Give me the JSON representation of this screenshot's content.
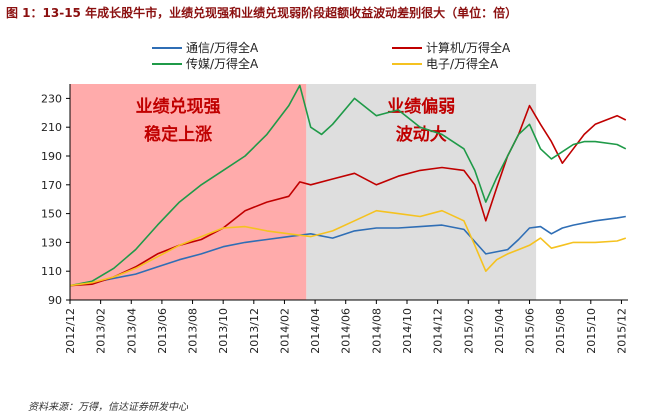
{
  "title": "图 1：13-15 年成长股牛市，业绩兑现强和业绩兑现弱阶段超额收益波动差别很大（单位：倍）",
  "source": "资料来源：万得，信达证券研发中心",
  "chart_data": {
    "type": "line",
    "title": "图 1：13-15 年成长股牛市，业绩兑现强和业绩兑现弱阶段超额收益波动差别很大（单位：倍）",
    "x_ticks": [
      "2012/12",
      "2013/02",
      "2013/04",
      "2013/06",
      "2013/08",
      "2013/10",
      "2013/12",
      "2014/02",
      "2014/04",
      "2014/06",
      "2014/08",
      "2014/10",
      "2014/12",
      "2015/02",
      "2015/04",
      "2015/06",
      "2015/08",
      "2015/10",
      "2015/12"
    ],
    "y_ticks": [
      90,
      110,
      130,
      150,
      170,
      190,
      210,
      230
    ],
    "ylim": [
      90,
      240
    ],
    "xlim": [
      0,
      25.5
    ],
    "grid": false,
    "legend_position": "top",
    "shaded_regions": [
      {
        "from": 0,
        "to": 10.8,
        "color": "#ffabab",
        "label_lines": [
          "业绩兑现强",
          "稳定上涨"
        ]
      },
      {
        "from": 10.8,
        "to": 21.3,
        "color": "#dedede",
        "label_lines": [
          "业绩偏弱",
          "波动大"
        ]
      }
    ],
    "series": [
      {
        "name": "通信/万得全A",
        "color": "#2f6eb5",
        "x": [
          0,
          1,
          2,
          3,
          4,
          5,
          6,
          7,
          8,
          9,
          10,
          11,
          12,
          13,
          14,
          15,
          16,
          17,
          18,
          19,
          20,
          20.5,
          21,
          21.5,
          22,
          22.5,
          23,
          24,
          25,
          25.4
        ],
        "y": [
          100,
          102,
          105,
          108,
          113,
          118,
          122,
          127,
          130,
          132,
          134,
          136,
          133,
          138,
          140,
          140,
          141,
          142,
          139,
          122,
          125,
          132,
          140,
          141,
          136,
          140,
          142,
          145,
          147,
          148
        ]
      },
      {
        "name": "计算机/万得全A",
        "color": "#c00000",
        "x": [
          0,
          1,
          2,
          3,
          4,
          5,
          6,
          7,
          8,
          9,
          10,
          10.5,
          11,
          12,
          13,
          14,
          15,
          16,
          17,
          18,
          18.5,
          19,
          19.5,
          20,
          20.5,
          21,
          21.5,
          22,
          22.5,
          23,
          23.5,
          24,
          25,
          25.4
        ],
        "y": [
          100,
          101,
          106,
          113,
          122,
          128,
          132,
          140,
          152,
          158,
          162,
          172,
          170,
          174,
          178,
          170,
          176,
          180,
          182,
          180,
          170,
          145,
          168,
          190,
          205,
          225,
          212,
          200,
          185,
          195,
          205,
          212,
          218,
          215
        ]
      },
      {
        "name": "传媒/万得全A",
        "color": "#1f9a48",
        "x": [
          0,
          1,
          2,
          3,
          4,
          5,
          6,
          7,
          8,
          9,
          10,
          10.5,
          11,
          11.5,
          12,
          13,
          14,
          15,
          16,
          17,
          18,
          18.5,
          19,
          19.5,
          20,
          20.5,
          21,
          21.5,
          22,
          22.5,
          23,
          23.5,
          24,
          25,
          25.4
        ],
        "y": [
          100,
          103,
          112,
          125,
          142,
          158,
          170,
          180,
          190,
          205,
          225,
          239,
          210,
          205,
          212,
          230,
          218,
          222,
          210,
          205,
          195,
          180,
          158,
          175,
          190,
          205,
          212,
          195,
          188,
          193,
          198,
          200,
          200,
          198,
          195
        ]
      },
      {
        "name": "电子/万得全A",
        "color": "#f5c220",
        "x": [
          0,
          1,
          2,
          3,
          4,
          5,
          6,
          7,
          8,
          9,
          10,
          11,
          12,
          13,
          14,
          15,
          16,
          17,
          18,
          18.5,
          19,
          19.5,
          20,
          20.5,
          21,
          21.5,
          22,
          22.5,
          23,
          24,
          25,
          25.4
        ],
        "y": [
          100,
          102,
          106,
          112,
          120,
          128,
          134,
          140,
          141,
          138,
          136,
          134,
          138,
          145,
          152,
          150,
          148,
          152,
          145,
          128,
          110,
          118,
          122,
          125,
          128,
          133,
          126,
          128,
          130,
          130,
          131,
          133
        ]
      }
    ]
  }
}
